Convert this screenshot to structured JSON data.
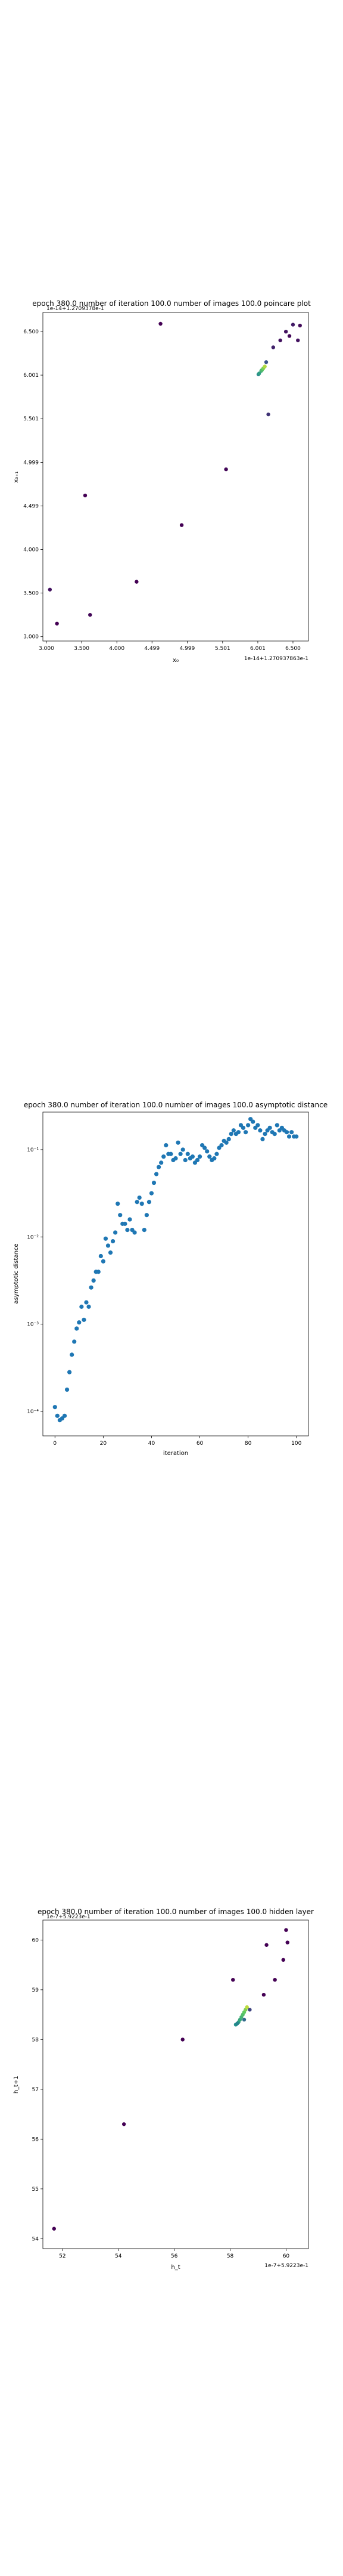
{
  "chart_data": [
    {
      "type": "scatter",
      "title": "epoch 380.0 number of iteration 100.0 number of images 100.0 poincare plot",
      "overlay_text": "1e-14+1.2709378e-1",
      "xlabel": "x₀",
      "ylabel": "x₀₊₁",
      "x_ticks": [
        "3.000",
        "3.500",
        "4.000",
        "4.499",
        "4.999",
        "5.501",
        "6.001",
        "6.500"
      ],
      "x_tick_values": [
        3.0,
        3.5,
        4.0,
        4.499,
        4.999,
        5.501,
        6.001,
        6.5
      ],
      "y_ticks": [
        "3.000",
        "3.500",
        "4.000",
        "4.499",
        "4.999",
        "5.501",
        "6.001",
        "6.500"
      ],
      "y_tick_values": [
        3.0,
        3.5,
        4.0,
        4.499,
        4.999,
        5.501,
        6.001,
        6.5
      ],
      "x_offset": "1e-14+1.270937863e-1",
      "xlim": [
        2.95,
        6.72
      ],
      "ylim": [
        2.95,
        6.72
      ],
      "colormap": "viridis",
      "x": [
        3.05,
        3.15,
        3.55,
        3.62,
        4.28,
        4.62,
        4.92,
        5.55,
        6.01,
        6.02,
        6.05,
        6.06,
        6.08,
        6.1,
        6.12,
        6.15,
        6.22,
        6.32,
        6.4,
        6.45,
        6.5,
        6.57,
        6.6
      ],
      "y": [
        3.54,
        3.15,
        4.62,
        3.25,
        3.63,
        6.59,
        4.28,
        4.92,
        6.01,
        6.02,
        6.05,
        6.06,
        6.08,
        6.1,
        6.15,
        5.55,
        6.32,
        6.4,
        6.5,
        6.45,
        6.58,
        6.4,
        6.57
      ],
      "c": [
        0.05,
        0.0,
        0.0,
        0.02,
        0.0,
        0.0,
        0.0,
        0.02,
        0.45,
        0.55,
        0.62,
        0.7,
        0.8,
        0.88,
        0.25,
        0.15,
        0.1,
        0.05,
        0.05,
        0.02,
        0.08,
        0.05,
        0.03
      ]
    },
    {
      "type": "scatter",
      "title": "epoch 380.0 number of iteration 100.0  number of images 100.0 asymptotic distance",
      "xlabel": "iteration",
      "ylabel": "asymptotic distance",
      "yscale": "log",
      "x_ticks": [
        "0",
        "20",
        "40",
        "60",
        "80",
        "100"
      ],
      "x_tick_values": [
        0,
        20,
        40,
        60,
        80,
        100
      ],
      "y_ticks": [
        "10⁻⁴",
        "10⁻³",
        "10⁻²",
        "10⁻¹"
      ],
      "y_tick_values": [
        -4,
        -3,
        -2,
        -1
      ],
      "xlim": [
        -5,
        105
      ],
      "ylim": [
        -4.28,
        -0.57
      ],
      "marker_color": "#1f77b4",
      "x": [
        0,
        1,
        2,
        3,
        4,
        5,
        6,
        7,
        8,
        9,
        10,
        11,
        12,
        13,
        14,
        15,
        16,
        17,
        18,
        19,
        20,
        21,
        22,
        23,
        24,
        25,
        26,
        27,
        28,
        29,
        30,
        31,
        32,
        33,
        34,
        35,
        36,
        37,
        38,
        39,
        40,
        41,
        42,
        43,
        44,
        45,
        46,
        47,
        48,
        49,
        50,
        51,
        52,
        53,
        54,
        55,
        56,
        57,
        58,
        59,
        60,
        61,
        62,
        63,
        64,
        65,
        66,
        67,
        68,
        69,
        70,
        71,
        72,
        73,
        74,
        75,
        76,
        77,
        78,
        79,
        80,
        81,
        82,
        83,
        84,
        85,
        86,
        87,
        88,
        89,
        90,
        91,
        92,
        93,
        94,
        95,
        96,
        97,
        98,
        99,
        100
      ],
      "log10_y": [
        -3.95,
        -4.05,
        -4.1,
        -4.08,
        -4.05,
        -3.75,
        -3.55,
        -3.35,
        -3.2,
        -3.05,
        -2.98,
        -2.8,
        -2.95,
        -2.75,
        -2.8,
        -2.58,
        -2.5,
        -2.4,
        -2.4,
        -2.22,
        -2.28,
        -2.02,
        -2.1,
        -2.18,
        -2.05,
        -1.95,
        -1.62,
        -1.75,
        -1.85,
        -1.85,
        -1.92,
        -1.8,
        -1.92,
        -1.95,
        -1.6,
        -1.55,
        -1.62,
        -1.92,
        -1.75,
        -1.6,
        -1.5,
        -1.38,
        -1.28,
        -1.2,
        -1.15,
        -1.08,
        -0.95,
        -1.05,
        -1.05,
        -1.12,
        -1.1,
        -0.92,
        -1.05,
        -1.0,
        -1.12,
        -1.05,
        -1.1,
        -1.08,
        -1.15,
        -1.12,
        -1.08,
        -0.95,
        -0.98,
        -1.02,
        -1.08,
        -1.12,
        -1.1,
        -1.05,
        -0.98,
        -0.95,
        -0.9,
        -0.92,
        -0.88,
        -0.82,
        -0.78,
        -0.82,
        -0.8,
        -0.72,
        -0.75,
        -0.8,
        -0.72,
        -0.65,
        -0.68,
        -0.75,
        -0.72,
        -0.78,
        -0.88,
        -0.82,
        -0.78,
        -0.75,
        -0.8,
        -0.82,
        -0.72,
        -0.78,
        -0.75,
        -0.78,
        -0.8,
        -0.85,
        -0.8,
        -0.85,
        -0.85
      ]
    },
    {
      "type": "scatter",
      "title": "epoch 380.0 number of iteration 100.0  number of images 100.0 hidden layer",
      "overlay_text": "1e-7+5.9223e-1",
      "xlabel": "h_t",
      "ylabel": "h_t+1",
      "x_ticks": [
        "52",
        "54",
        "56",
        "58",
        "60"
      ],
      "x_tick_values": [
        52,
        54,
        56,
        58,
        60
      ],
      "y_ticks": [
        "54",
        "55",
        "56",
        "57",
        "58",
        "59",
        "60"
      ],
      "y_tick_values": [
        54,
        55,
        56,
        57,
        58,
        59,
        60
      ],
      "x_offset": "1e-7+5.9223e-1",
      "xlim": [
        51.3,
        60.8
      ],
      "ylim": [
        53.8,
        60.4
      ],
      "colormap": "viridis",
      "x": [
        51.7,
        54.2,
        56.3,
        58.1,
        58.2,
        58.3,
        58.35,
        58.4,
        58.45,
        58.5,
        58.55,
        58.6,
        58.7,
        59.2,
        59.3,
        59.6,
        59.9,
        60.0,
        60.05,
        58.5,
        58.25
      ],
      "y": [
        54.2,
        56.3,
        58.0,
        59.2,
        58.3,
        58.35,
        58.4,
        58.45,
        58.5,
        58.55,
        58.6,
        58.65,
        58.6,
        58.9,
        59.9,
        59.2,
        59.6,
        60.2,
        59.95,
        58.4,
        58.32
      ],
      "c": [
        0.0,
        0.0,
        0.0,
        0.0,
        0.5,
        0.55,
        0.6,
        0.65,
        0.7,
        0.75,
        0.8,
        0.9,
        0.2,
        0.0,
        0.0,
        0.0,
        0.0,
        0.0,
        0.0,
        0.35,
        0.45
      ]
    }
  ]
}
